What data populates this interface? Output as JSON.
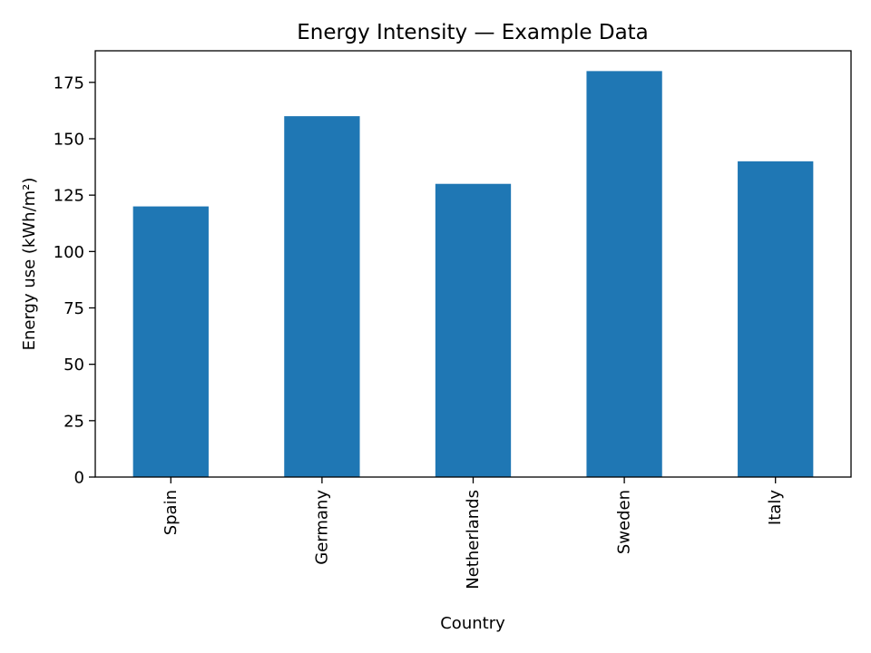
{
  "chart_data": {
    "type": "bar",
    "title": "Energy Intensity — Example Data",
    "xlabel": "Country",
    "ylabel": "Energy use (kWh/m²)",
    "categories": [
      "Spain",
      "Germany",
      "Netherlands",
      "Sweden",
      "Italy"
    ],
    "values": [
      120,
      160,
      130,
      180,
      140
    ],
    "ylim": [
      0,
      189
    ],
    "yticks": [
      0,
      25,
      50,
      75,
      100,
      125,
      150,
      175
    ],
    "bar_color": "#1f77b4",
    "grid": false,
    "legend": "none"
  }
}
